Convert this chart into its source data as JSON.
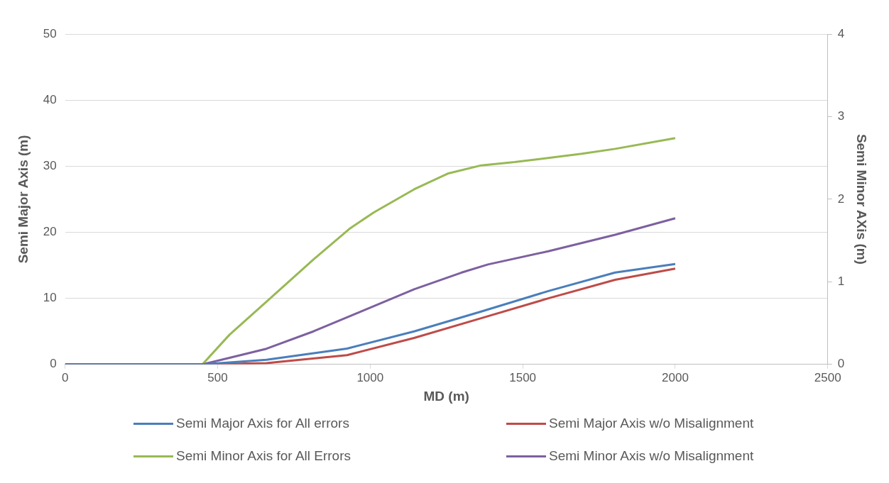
{
  "chart_data": {
    "type": "line",
    "xlabel": "MD (m)",
    "ylabel": "Semi Major Axis (m)",
    "y2label": "Semi Minor AXis (m)",
    "xlim": [
      0,
      2500
    ],
    "xticks": [
      0,
      500,
      1000,
      1500,
      2000,
      2500
    ],
    "ylim": [
      0,
      50
    ],
    "yticks": [
      0,
      10,
      20,
      30,
      40,
      50
    ],
    "y2lim": [
      0,
      4
    ],
    "y2ticks": [
      0,
      1,
      2,
      3,
      4
    ],
    "grid": "y",
    "legend": "bottom",
    "marker": "none",
    "line_style": "solid",
    "series": [
      {
        "name": "Semi Major Axis for All errors",
        "color": "#4a7ebb",
        "x": [
          0,
          450,
          660,
          924,
          1144,
          1364,
          1584,
          1803,
          2000
        ],
        "values": [
          0,
          0,
          0.7,
          2.4,
          5.0,
          8.0,
          11.1,
          13.9,
          15.2
        ]
      },
      {
        "name": "Semi Major Axis w/o Misalignment",
        "color": "#be4b48",
        "x": [
          0,
          450,
          660,
          924,
          1144,
          1364,
          1584,
          1803,
          2000
        ],
        "values": [
          0,
          0,
          0.2,
          1.4,
          4.0,
          7.0,
          10.0,
          12.8,
          14.5
        ]
      },
      {
        "name": "Semi Minor Axis for All Errors",
        "color": "#98b954",
        "axis": "y2",
        "x": [
          0,
          450,
          539,
          660,
          814,
          935,
          1012,
          1144,
          1254,
          1364,
          1473,
          1694,
          1803,
          2000
        ],
        "values": [
          0,
          0,
          0.36,
          0.76,
          1.27,
          1.65,
          1.84,
          2.12,
          2.31,
          2.41,
          2.45,
          2.55,
          2.61,
          2.74
        ]
      },
      {
        "name": "Semi Minor Axis w/o Misalignment",
        "color": "#7d60a0",
        "axis": "y2",
        "x": [
          0,
          450,
          539,
          660,
          814,
          969,
          1144,
          1298,
          1386,
          1584,
          1803,
          2000
        ],
        "values": [
          0,
          0,
          0.08,
          0.19,
          0.4,
          0.64,
          0.91,
          1.11,
          1.21,
          1.37,
          1.57,
          1.77
        ]
      }
    ]
  }
}
